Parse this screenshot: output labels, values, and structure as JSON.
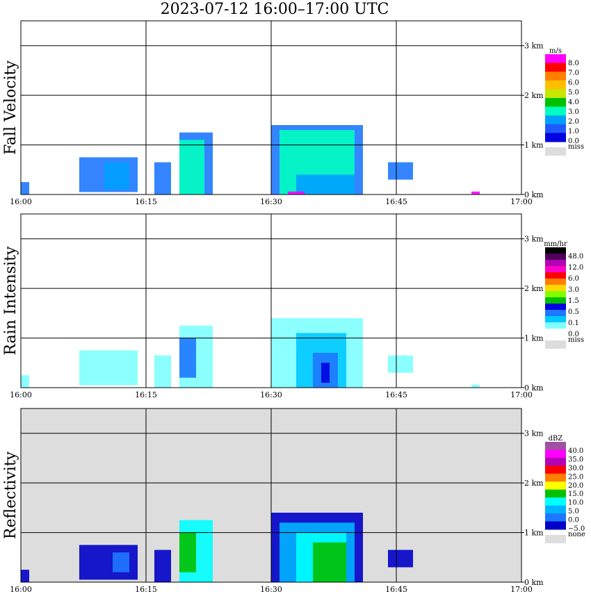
{
  "title": "2023-07-12   16:00–17:00 UTC",
  "chart_data": [
    {
      "type": "heatmap",
      "title": "Fall Velocity",
      "x_ticks": [
        "16:00",
        "16:15",
        "16:30",
        "16:45",
        "17:00"
      ],
      "y_ticks": [
        "0 km",
        "1 km",
        "2 km",
        "3 km"
      ],
      "xlim": [
        "16:00",
        "17:00"
      ],
      "ylim_km": [
        0,
        3.5
      ],
      "grid": true,
      "legend": {
        "unit": "m/s",
        "labels": [
          "8.0",
          "7.0",
          "6.0",
          "5.0",
          "4.0",
          "3.0",
          "2.0",
          "1.0",
          "0.0"
        ],
        "colors": [
          "#ff00ff",
          "#ff0000",
          "#ff7f00",
          "#ffbf00",
          "#c8e600",
          "#00c000",
          "#00ffc0",
          "#00a0ff",
          "#1e5aff",
          "#0000e0"
        ],
        "miss_label": "miss",
        "miss_color": "#dddddd"
      },
      "background": "#ffffff",
      "echoes": [
        {
          "t0": "16:00",
          "t1": "16:01",
          "base_km": 0.0,
          "top_km": 0.25,
          "color": "#1e78ff"
        },
        {
          "t0": "16:07",
          "t1": "16:14",
          "base_km": 0.05,
          "top_km": 0.75,
          "color": "#1e78ff"
        },
        {
          "t0": "16:10",
          "t1": "16:13",
          "base_km": 0.1,
          "top_km": 0.65,
          "color": "#00a0ff"
        },
        {
          "t0": "16:16",
          "t1": "16:18",
          "base_km": 0.0,
          "top_km": 0.65,
          "color": "#1e78ff"
        },
        {
          "t0": "16:19",
          "t1": "16:23",
          "base_km": 0.0,
          "top_km": 1.25,
          "color": "#1e78ff"
        },
        {
          "t0": "16:19",
          "t1": "16:22",
          "base_km": 0.0,
          "top_km": 1.1,
          "color": "#00ffc0"
        },
        {
          "t0": "16:30",
          "t1": "16:41",
          "base_km": 0.0,
          "top_km": 1.4,
          "color": "#1e78ff"
        },
        {
          "t0": "16:31",
          "t1": "16:40",
          "base_km": 0.0,
          "top_km": 1.3,
          "color": "#00ffc0"
        },
        {
          "t0": "16:33",
          "t1": "16:40",
          "base_km": 0.0,
          "top_km": 0.4,
          "color": "#00a0ff"
        },
        {
          "t0": "16:44",
          "t1": "16:47",
          "base_km": 0.3,
          "top_km": 0.65,
          "color": "#1e78ff"
        },
        {
          "t0": "16:32",
          "t1": "16:34",
          "base_km": 0.0,
          "top_km": 0.06,
          "color": "#ff00ff"
        },
        {
          "t0": "16:54",
          "t1": "16:55",
          "base_km": 0.0,
          "top_km": 0.06,
          "color": "#ff00ff"
        }
      ]
    },
    {
      "type": "heatmap",
      "title": "Rain Intensity",
      "x_ticks": [
        "16:00",
        "16:15",
        "16:30",
        "16:45",
        "17:00"
      ],
      "y_ticks": [
        "0 km",
        "1 km",
        "2 km",
        "3 km"
      ],
      "xlim": [
        "16:00",
        "17:00"
      ],
      "ylim_km": [
        0,
        3.5
      ],
      "grid": true,
      "legend": {
        "unit": "mm/hr",
        "labels": [
          "48.0",
          "12.0",
          "6.0",
          "3.0",
          "1.5",
          "0.5",
          "0.1",
          "0.0"
        ],
        "colors": [
          "#000000",
          "#50005a",
          "#b400b4",
          "#ff00c8",
          "#ff0000",
          "#ff7f00",
          "#ffd700",
          "#80ff00",
          "#00c000",
          "#0000e0",
          "#1e78ff",
          "#00c8ff",
          "#80ffff",
          "#ffffff"
        ],
        "miss_label": "miss",
        "miss_color": "#dddddd"
      },
      "background": "#ffffff",
      "echoes": [
        {
          "t0": "16:00",
          "t1": "16:01",
          "base_km": 0.0,
          "top_km": 0.25,
          "color": "#80ffff"
        },
        {
          "t0": "16:07",
          "t1": "16:14",
          "base_km": 0.05,
          "top_km": 0.75,
          "color": "#80ffff"
        },
        {
          "t0": "16:16",
          "t1": "16:18",
          "base_km": 0.0,
          "top_km": 0.65,
          "color": "#80ffff"
        },
        {
          "t0": "16:19",
          "t1": "16:23",
          "base_km": 0.0,
          "top_km": 1.25,
          "color": "#80ffff"
        },
        {
          "t0": "16:19",
          "t1": "16:21",
          "base_km": 0.2,
          "top_km": 1.0,
          "color": "#1e78ff"
        },
        {
          "t0": "16:30",
          "t1": "16:41",
          "base_km": 0.0,
          "top_km": 1.4,
          "color": "#80ffff"
        },
        {
          "t0": "16:33",
          "t1": "16:39",
          "base_km": 0.0,
          "top_km": 1.1,
          "color": "#00c8ff"
        },
        {
          "t0": "16:35",
          "t1": "16:38",
          "base_km": 0.0,
          "top_km": 0.7,
          "color": "#1e78ff"
        },
        {
          "t0": "16:36",
          "t1": "16:37",
          "base_km": 0.1,
          "top_km": 0.5,
          "color": "#0000e0"
        },
        {
          "t0": "16:44",
          "t1": "16:47",
          "base_km": 0.3,
          "top_km": 0.65,
          "color": "#80ffff"
        },
        {
          "t0": "16:54",
          "t1": "16:55",
          "base_km": 0.0,
          "top_km": 0.06,
          "color": "#80ffff"
        }
      ]
    },
    {
      "type": "heatmap",
      "title": "Reflectivity",
      "x_ticks": [
        "16:00",
        "16:15",
        "16:30",
        "16:45",
        "17:00"
      ],
      "y_ticks": [
        "0 km",
        "1 km",
        "2 km",
        "3 km"
      ],
      "xlim": [
        "16:00",
        "17:00"
      ],
      "ylim_km": [
        0,
        3.5
      ],
      "grid": true,
      "legend": {
        "unit": "dBZ",
        "labels": [
          "40.0",
          "35.0",
          "30.0",
          "25.0",
          "20.0",
          "15.0",
          "10.0",
          "5.0",
          "0.0",
          "−5.0"
        ],
        "colors": [
          "#a050a0",
          "#ff00ff",
          "#b400b4",
          "#ff0000",
          "#ff7f00",
          "#ffff00",
          "#00c000",
          "#00ffff",
          "#00b4ff",
          "#1e78ff",
          "#0000c8"
        ],
        "miss_label": "none",
        "miss_color": "#dddddd"
      },
      "background": "#dddddd",
      "echoes": [
        {
          "t0": "16:00",
          "t1": "16:01",
          "base_km": 0.0,
          "top_km": 0.25,
          "color": "#0000c8"
        },
        {
          "t0": "16:07",
          "t1": "16:14",
          "base_km": 0.05,
          "top_km": 0.75,
          "color": "#0000c8"
        },
        {
          "t0": "16:11",
          "t1": "16:13",
          "base_km": 0.2,
          "top_km": 0.6,
          "color": "#1e78ff"
        },
        {
          "t0": "16:16",
          "t1": "16:18",
          "base_km": 0.0,
          "top_km": 0.65,
          "color": "#0000c8"
        },
        {
          "t0": "16:19",
          "t1": "16:23",
          "base_km": 0.0,
          "top_km": 1.25,
          "color": "#00ffff"
        },
        {
          "t0": "16:19",
          "t1": "16:21",
          "base_km": 0.2,
          "top_km": 1.0,
          "color": "#00c000"
        },
        {
          "t0": "16:30",
          "t1": "16:41",
          "base_km": 0.0,
          "top_km": 1.4,
          "color": "#0000c8"
        },
        {
          "t0": "16:31",
          "t1": "16:40",
          "base_km": 0.0,
          "top_km": 1.2,
          "color": "#00b4ff"
        },
        {
          "t0": "16:33",
          "t1": "16:39",
          "base_km": 0.0,
          "top_km": 1.0,
          "color": "#00ffff"
        },
        {
          "t0": "16:35",
          "t1": "16:39",
          "base_km": 0.0,
          "top_km": 0.8,
          "color": "#00c000"
        },
        {
          "t0": "16:44",
          "t1": "16:47",
          "base_km": 0.3,
          "top_km": 0.65,
          "color": "#0000c8"
        }
      ]
    }
  ]
}
